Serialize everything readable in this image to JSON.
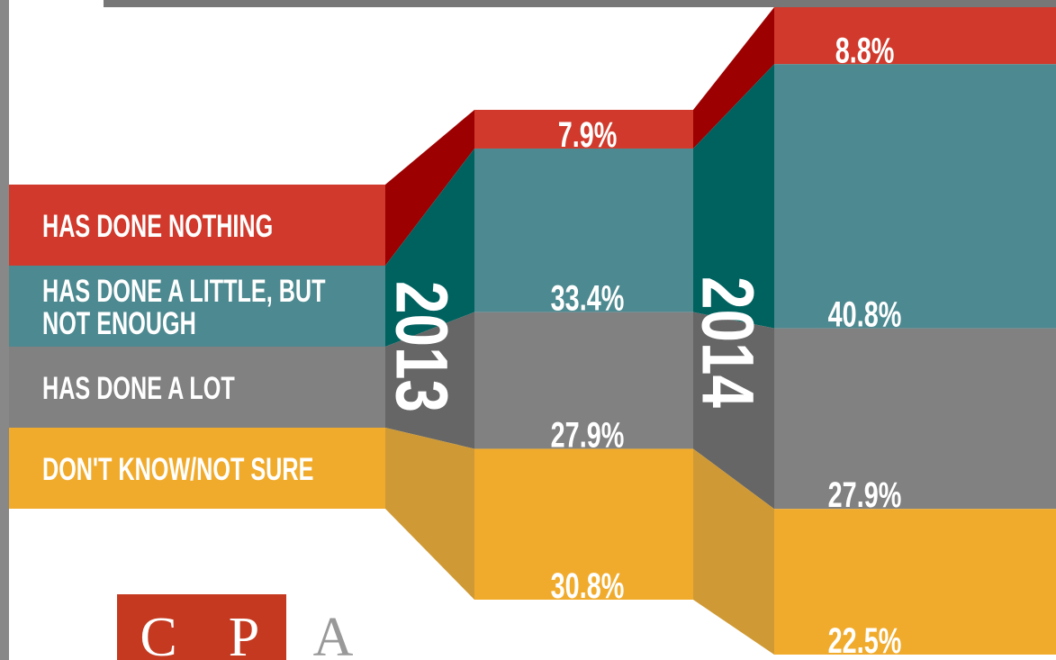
{
  "chart_data": {
    "type": "stacked-column-ribbon",
    "categories": [
      "2013",
      "2014"
    ],
    "series": [
      {
        "name": "HAS DONE NOTHING",
        "color": "#d0392b",
        "shade_color": "#9c0000",
        "values": [
          7.9,
          8.8
        ],
        "value_labels": [
          "7.9%",
          "8.8%"
        ]
      },
      {
        "name": "HAS DONE A LITTLE, BUT NOT ENOUGH",
        "color": "#4d8990",
        "shade_color": "#00625f",
        "values": [
          33.4,
          40.8
        ],
        "value_labels": [
          "33.4%",
          "40.8%"
        ]
      },
      {
        "name": "HAS DONE A LOT",
        "color": "#818181",
        "shade_color": "#666666",
        "values": [
          27.9,
          27.9
        ],
        "value_labels": [
          "27.9%",
          "27.9%"
        ]
      },
      {
        "name": "DON'T KNOW/NOT SURE",
        "color": "#f1ab2c",
        "shade_color": "#cf9a35",
        "values": [
          30.8,
          22.5
        ],
        "value_labels": [
          "30.8%",
          "22.5%"
        ]
      }
    ]
  },
  "logo": [
    "C",
    "P",
    "A"
  ]
}
